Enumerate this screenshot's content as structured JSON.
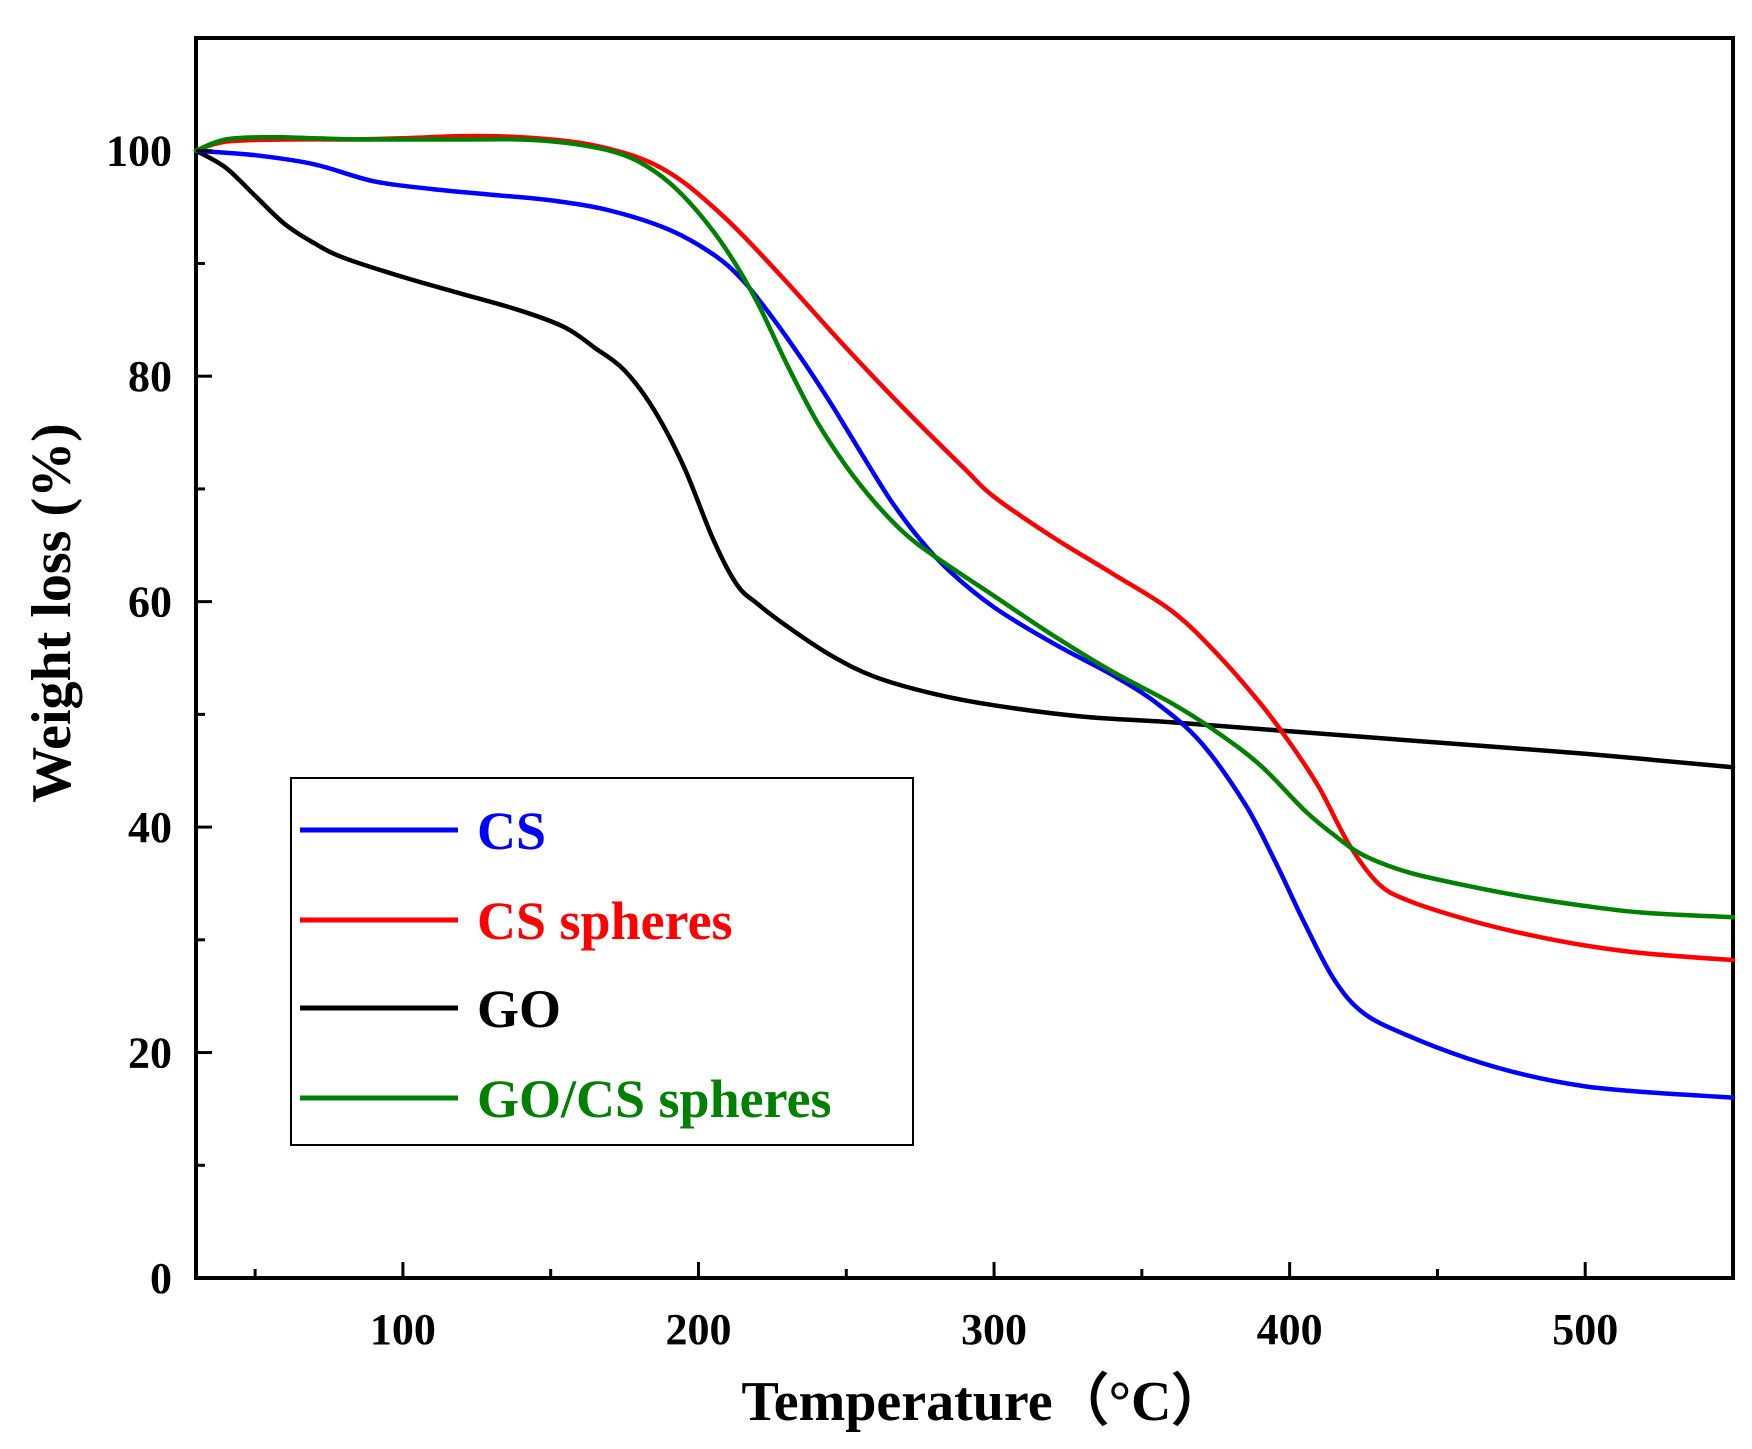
{
  "chart_data": {
    "type": "line",
    "title": "",
    "xlabel": "Temperature（°C）",
    "ylabel": "Weight loss (%)",
    "xlim": [
      30,
      550
    ],
    "ylim": [
      0,
      110
    ],
    "x_ticks": [
      100,
      200,
      300,
      400,
      500
    ],
    "y_ticks": [
      0,
      20,
      40,
      60,
      80,
      100
    ],
    "x_tick_labels": [
      "100",
      "200",
      "300",
      "400",
      "500"
    ],
    "y_tick_labels": [
      "0",
      "20",
      "40",
      "60",
      "80",
      "100"
    ],
    "grid": false,
    "legend_position": "lower-left",
    "series": [
      {
        "name": "CS",
        "color": "#0000ff",
        "points": [
          [
            30,
            100
          ],
          [
            50,
            99.6
          ],
          [
            70,
            98.8
          ],
          [
            90,
            97.3
          ],
          [
            110,
            96.6
          ],
          [
            130,
            96.1
          ],
          [
            150,
            95.6
          ],
          [
            170,
            94.7
          ],
          [
            190,
            93.0
          ],
          [
            205,
            90.8
          ],
          [
            215,
            88.5
          ],
          [
            225,
            85.2
          ],
          [
            235,
            81.5
          ],
          [
            245,
            77.5
          ],
          [
            255,
            73.2
          ],
          [
            265,
            69.0
          ],
          [
            275,
            65.5
          ],
          [
            285,
            62.7
          ],
          [
            300,
            59.5
          ],
          [
            320,
            56.3
          ],
          [
            340,
            53.5
          ],
          [
            355,
            51.0
          ],
          [
            370,
            47.5
          ],
          [
            385,
            42.0
          ],
          [
            395,
            37.0
          ],
          [
            405,
            31.5
          ],
          [
            415,
            26.5
          ],
          [
            425,
            23.5
          ],
          [
            440,
            21.5
          ],
          [
            460,
            19.5
          ],
          [
            480,
            18.0
          ],
          [
            500,
            17.0
          ],
          [
            520,
            16.5
          ],
          [
            550,
            16.0
          ]
        ]
      },
      {
        "name": "CS spheres",
        "color": "#ff0000",
        "points": [
          [
            30,
            100
          ],
          [
            40,
            100.8
          ],
          [
            60,
            101.0
          ],
          [
            80,
            101.0
          ],
          [
            100,
            101.1
          ],
          [
            120,
            101.3
          ],
          [
            140,
            101.2
          ],
          [
            160,
            100.7
          ],
          [
            175,
            99.8
          ],
          [
            185,
            98.8
          ],
          [
            195,
            97.2
          ],
          [
            205,
            95.0
          ],
          [
            215,
            92.5
          ],
          [
            230,
            88.3
          ],
          [
            250,
            82.5
          ],
          [
            270,
            77.0
          ],
          [
            290,
            71.8
          ],
          [
            300,
            69.3
          ],
          [
            320,
            65.7
          ],
          [
            340,
            62.5
          ],
          [
            360,
            59.2
          ],
          [
            375,
            55.5
          ],
          [
            390,
            51.0
          ],
          [
            400,
            47.5
          ],
          [
            410,
            43.5
          ],
          [
            420,
            38.5
          ],
          [
            430,
            35.0
          ],
          [
            440,
            33.5
          ],
          [
            460,
            31.8
          ],
          [
            480,
            30.5
          ],
          [
            500,
            29.5
          ],
          [
            520,
            28.8
          ],
          [
            550,
            28.2
          ]
        ]
      },
      {
        "name": "GO",
        "color": "#000000",
        "points": [
          [
            30,
            100
          ],
          [
            40,
            98.5
          ],
          [
            50,
            96.0
          ],
          [
            60,
            93.5
          ],
          [
            70,
            91.8
          ],
          [
            80,
            90.5
          ],
          [
            100,
            88.8
          ],
          [
            120,
            87.3
          ],
          [
            140,
            85.8
          ],
          [
            155,
            84.3
          ],
          [
            165,
            82.5
          ],
          [
            175,
            80.5
          ],
          [
            185,
            77.0
          ],
          [
            195,
            72.0
          ],
          [
            205,
            65.5
          ],
          [
            213,
            61.5
          ],
          [
            220,
            59.8
          ],
          [
            230,
            57.8
          ],
          [
            245,
            55.2
          ],
          [
            260,
            53.3
          ],
          [
            280,
            51.8
          ],
          [
            300,
            50.8
          ],
          [
            330,
            49.8
          ],
          [
            360,
            49.3
          ],
          [
            400,
            48.5
          ],
          [
            450,
            47.5
          ],
          [
            500,
            46.5
          ],
          [
            550,
            45.3
          ]
        ]
      },
      {
        "name": "GO/CS spheres",
        "color": "#008000",
        "points": [
          [
            30,
            100
          ],
          [
            40,
            101.0
          ],
          [
            55,
            101.2
          ],
          [
            70,
            101.1
          ],
          [
            85,
            101.0
          ],
          [
            100,
            101.0
          ],
          [
            120,
            101.0
          ],
          [
            140,
            101.0
          ],
          [
            155,
            100.7
          ],
          [
            170,
            100.0
          ],
          [
            180,
            99.0
          ],
          [
            190,
            97.2
          ],
          [
            200,
            94.5
          ],
          [
            210,
            91.0
          ],
          [
            220,
            86.5
          ],
          [
            230,
            81.0
          ],
          [
            240,
            76.0
          ],
          [
            250,
            72.0
          ],
          [
            260,
            68.7
          ],
          [
            270,
            66.0
          ],
          [
            280,
            64.0
          ],
          [
            300,
            60.5
          ],
          [
            320,
            57.0
          ],
          [
            340,
            53.8
          ],
          [
            360,
            51.0
          ],
          [
            375,
            48.5
          ],
          [
            390,
            45.5
          ],
          [
            405,
            41.5
          ],
          [
            415,
            39.3
          ],
          [
            425,
            37.5
          ],
          [
            440,
            36.0
          ],
          [
            460,
            34.8
          ],
          [
            480,
            33.8
          ],
          [
            500,
            33.0
          ],
          [
            520,
            32.4
          ],
          [
            550,
            32.0
          ]
        ]
      }
    ]
  }
}
